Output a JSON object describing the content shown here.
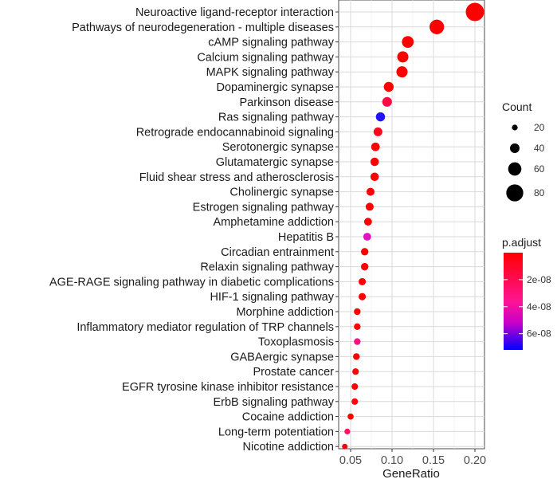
{
  "chart_data": {
    "type": "scatter",
    "title": "",
    "xlabel": "GeneRatio",
    "ylabel": "",
    "xlim": [
      0.04,
      0.205
    ],
    "x_ticks": [
      0.05,
      0.1,
      0.15,
      0.2
    ],
    "x_tick_labels": [
      "0.05",
      "0.10",
      "0.15",
      "0.20"
    ],
    "grid": true,
    "legend_position": "right",
    "terms": [
      {
        "name": "Neuroactive ligand-receptor interaction",
        "gene_ratio": 0.2,
        "count": 87,
        "p_adjust": 1e-20
      },
      {
        "name": "Pathways of neurodegeneration - multiple diseases",
        "gene_ratio": 0.154,
        "count": 67,
        "p_adjust": 5e-12
      },
      {
        "name": "cAMP signaling pathway",
        "gene_ratio": 0.119,
        "count": 52,
        "p_adjust": 1e-12
      },
      {
        "name": "Calcium signaling pathway",
        "gene_ratio": 0.113,
        "count": 49,
        "p_adjust": 1e-13
      },
      {
        "name": "MAPK signaling pathway",
        "gene_ratio": 0.112,
        "count": 49,
        "p_adjust": 1e-10
      },
      {
        "name": "Dopaminergic synapse",
        "gene_ratio": 0.096,
        "count": 42,
        "p_adjust": 1e-12
      },
      {
        "name": "Parkinson disease",
        "gene_ratio": 0.094,
        "count": 41,
        "p_adjust": 1.2e-08
      },
      {
        "name": "Ras signaling pathway",
        "gene_ratio": 0.086,
        "count": 38,
        "p_adjust": 7e-08
      },
      {
        "name": "Retrograde endocannabinoid signaling",
        "gene_ratio": 0.083,
        "count": 36,
        "p_adjust": 5e-09
      },
      {
        "name": "Serotonergic synapse",
        "gene_ratio": 0.08,
        "count": 35,
        "p_adjust": 1e-12
      },
      {
        "name": "Glutamatergic synapse",
        "gene_ratio": 0.079,
        "count": 34,
        "p_adjust": 1e-12
      },
      {
        "name": "Fluid shear stress and atherosclerosis",
        "gene_ratio": 0.079,
        "count": 34,
        "p_adjust": 1e-10
      },
      {
        "name": "Cholinergic synapse",
        "gene_ratio": 0.074,
        "count": 32,
        "p_adjust": 1e-10
      },
      {
        "name": "Estrogen signaling pathway",
        "gene_ratio": 0.073,
        "count": 32,
        "p_adjust": 1e-10
      },
      {
        "name": "Amphetamine addiction",
        "gene_ratio": 0.071,
        "count": 31,
        "p_adjust": 1e-12
      },
      {
        "name": "Hepatitis B",
        "gene_ratio": 0.07,
        "count": 31,
        "p_adjust": 3.8e-08
      },
      {
        "name": "Circadian entrainment",
        "gene_ratio": 0.067,
        "count": 29,
        "p_adjust": 1e-10
      },
      {
        "name": "Relaxin signaling pathway",
        "gene_ratio": 0.067,
        "count": 29,
        "p_adjust": 1e-09
      },
      {
        "name": "AGE-RAGE signaling pathway in diabetic complications",
        "gene_ratio": 0.064,
        "count": 28,
        "p_adjust": 1e-12
      },
      {
        "name": "HIF-1 signaling pathway",
        "gene_ratio": 0.064,
        "count": 28,
        "p_adjust": 1e-11
      },
      {
        "name": "Morphine addiction",
        "gene_ratio": 0.058,
        "count": 25,
        "p_adjust": 1e-10
      },
      {
        "name": "Inflammatory mediator regulation of TRP channels",
        "gene_ratio": 0.058,
        "count": 25,
        "p_adjust": 1e-09
      },
      {
        "name": "Toxoplasmosis",
        "gene_ratio": 0.058,
        "count": 25,
        "p_adjust": 2.4e-08
      },
      {
        "name": "GABAergic synapse",
        "gene_ratio": 0.057,
        "count": 25,
        "p_adjust": 1e-10
      },
      {
        "name": "Prostate cancer",
        "gene_ratio": 0.056,
        "count": 24,
        "p_adjust": 1e-09
      },
      {
        "name": "EGFR tyrosine kinase inhibitor resistance",
        "gene_ratio": 0.055,
        "count": 24,
        "p_adjust": 1e-12
      },
      {
        "name": "ErbB signaling pathway",
        "gene_ratio": 0.055,
        "count": 24,
        "p_adjust": 1e-09
      },
      {
        "name": "Cocaine addiction",
        "gene_ratio": 0.05,
        "count": 22,
        "p_adjust": 1e-11
      },
      {
        "name": "Long-term potentiation",
        "gene_ratio": 0.046,
        "count": 20,
        "p_adjust": 1.8e-08
      },
      {
        "name": "Nicotine addiction",
        "gene_ratio": 0.043,
        "count": 19,
        "p_adjust": 2e-09
      }
    ],
    "size_legend": {
      "title": "Count",
      "values": [
        20,
        40,
        60,
        80
      ],
      "labels": [
        "20",
        "40",
        "60",
        "80"
      ]
    },
    "color_legend": {
      "title": "p.adjust",
      "range": [
        0,
        7.2e-08
      ],
      "ticks": [
        2e-08,
        4e-08,
        6e-08
      ],
      "labels": [
        "2e-08",
        "4e-08",
        "6e-08"
      ],
      "colors": {
        "low": "#ff0000",
        "high": "#0000ff"
      }
    }
  }
}
